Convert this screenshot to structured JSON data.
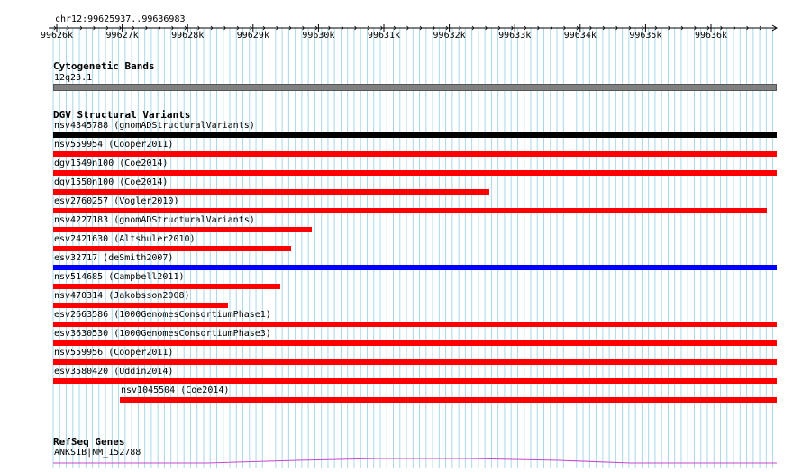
{
  "ruler": {
    "location": "chr12:99625937..99636983",
    "ticks": [
      "99626k",
      "99627k",
      "99628k",
      "99629k",
      "99630k",
      "99631k",
      "99632k",
      "99633k",
      "99634k",
      "99635k",
      "99636k"
    ]
  },
  "cytogenetic": {
    "title": "Cytogenetic Bands",
    "band_label": "12q23.1",
    "band_color": "#808080"
  },
  "dgv": {
    "title": "DGV Structural Variants",
    "variants": [
      {
        "label": "nsv4345788 (gnomADStructuralVariants)",
        "color": "#000000"
      },
      {
        "label": "nsv559954 (Cooper2011)",
        "color": "#ff0000"
      },
      {
        "label": "dgv1549n100 (Coe2014)",
        "color": "#ff0000"
      },
      {
        "label": "dgv1550n100 (Coe2014)",
        "color": "#ff0000"
      },
      {
        "label": "esv2760257 (Vogler2010)",
        "color": "#ff0000"
      },
      {
        "label": "nsv4227183 (gnomADStructuralVariants)",
        "color": "#ff0000"
      },
      {
        "label": "esv2421630 (Altshuler2010)",
        "color": "#ff0000"
      },
      {
        "label": "esv32717 (deSmith2007)",
        "color": "#0000ff"
      },
      {
        "label": "nsv514685 (Campbell2011)",
        "color": "#ff0000"
      },
      {
        "label": "nsv470314 (Jakobsson2008)",
        "color": "#ff0000"
      },
      {
        "label": "esv2663586 (1000GenomesConsortiumPhase1)",
        "color": "#ff0000"
      },
      {
        "label": "esv3630530 (1000GenomesConsortiumPhase3)",
        "color": "#ff0000"
      },
      {
        "label": "nsv559956 (Cooper2011)",
        "color": "#ff0000"
      },
      {
        "label": "esv3580420 (Uddin2014)",
        "color": "#ff0000"
      },
      {
        "label": "nsv1045504 (Coe2014)",
        "color": "#ff0000"
      }
    ]
  },
  "refseq": {
    "title": "RefSeq Genes",
    "gene_label": "ANKS1B|NM_152788",
    "color": "#cc44cc"
  },
  "colors": {
    "grid": "#a8d8e8",
    "grid_major": "#7fc4dc"
  }
}
